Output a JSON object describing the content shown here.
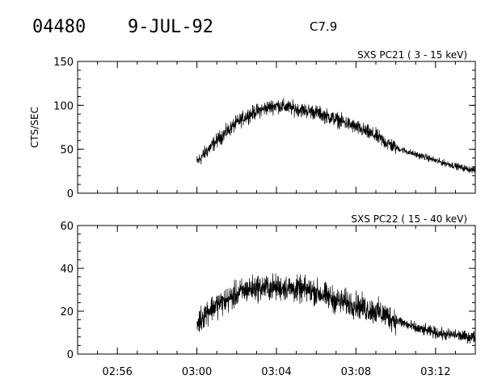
{
  "header": {
    "event_id": "04480",
    "date": "9-JUL-92",
    "flare_class": "C7.9"
  },
  "chart_data": [
    {
      "type": "line",
      "title": "SXS PC21  (  3 - 15 keV)",
      "ylabel": "CTS/SEC",
      "xlabel": "",
      "x_unit": "minutes since 02:00 UT",
      "xlim": [
        54.0,
        74.0
      ],
      "ylim": [
        0,
        150
      ],
      "yticks": [
        0,
        50,
        100,
        150
      ],
      "grid": false,
      "series": [
        {
          "name": "",
          "x": [
            60.0,
            60.5,
            61.0,
            61.5,
            62.0,
            62.5,
            63.0,
            63.5,
            64.0,
            64.5,
            65.0,
            65.5,
            66.0,
            66.5,
            67.0,
            67.5,
            68.0,
            68.5,
            69.0,
            69.5,
            70.0,
            70.5,
            71.0,
            71.5,
            72.0,
            72.5,
            73.0,
            73.5,
            74.0
          ],
          "y": [
            35,
            48,
            60,
            70,
            80,
            88,
            93,
            97,
            100,
            98,
            96,
            94,
            92,
            88,
            84,
            80,
            75,
            70,
            65,
            58,
            52,
            48,
            44,
            41,
            37,
            34,
            31,
            28,
            26
          ]
        }
      ]
    },
    {
      "type": "line",
      "title": "SXS PC22  ( 15 - 40 keV)",
      "ylabel": "",
      "xlabel": "",
      "x_unit": "minutes since 02:00 UT",
      "xlim": [
        54.0,
        74.0
      ],
      "ylim": [
        0,
        60
      ],
      "yticks": [
        0,
        20,
        40,
        60
      ],
      "xticks": [
        56,
        60,
        64,
        68,
        72
      ],
      "xticklabels": [
        "02:56",
        "03:00",
        "03:04",
        "03:08",
        "03:12"
      ],
      "grid": false,
      "series": [
        {
          "name": "",
          "x": [
            60.0,
            60.5,
            61.0,
            61.5,
            62.0,
            62.5,
            63.0,
            63.5,
            64.0,
            64.5,
            65.0,
            65.5,
            66.0,
            66.5,
            67.0,
            67.5,
            68.0,
            68.5,
            69.0,
            69.5,
            70.0,
            70.5,
            71.0,
            71.5,
            72.0,
            72.5,
            73.0,
            73.5,
            74.0
          ],
          "y": [
            14,
            20,
            23,
            25,
            28,
            30,
            31,
            31,
            31,
            31,
            30,
            30,
            29,
            27,
            25,
            24,
            23,
            21,
            20,
            18,
            16,
            14,
            12,
            11,
            10,
            9,
            9,
            8,
            8
          ]
        }
      ]
    }
  ]
}
